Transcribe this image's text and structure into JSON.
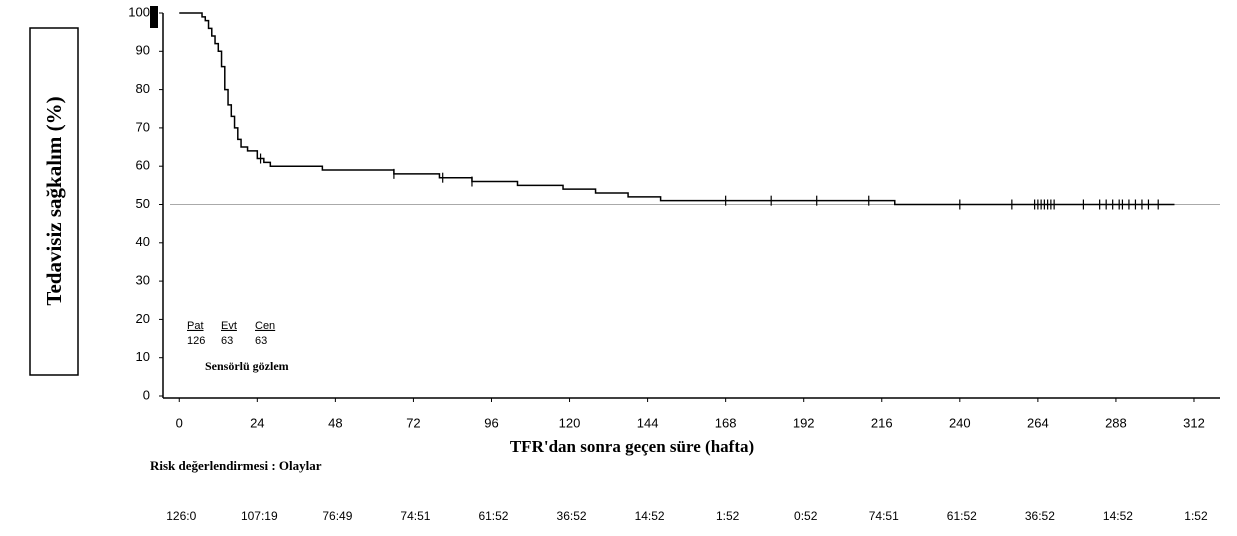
{
  "chart_data": {
    "type": "line",
    "y_label": "Tedavisiz sağkalım (%)",
    "x_label": "TFR'dan sonra geçen süre (hafta)",
    "xlim": [
      -5,
      320
    ],
    "ylim": [
      0,
      100
    ],
    "xticks": [
      0,
      24,
      48,
      72,
      96,
      120,
      144,
      168,
      192,
      216,
      240,
      264,
      288,
      312
    ],
    "yticks": [
      0,
      10,
      20,
      30,
      40,
      50,
      60,
      70,
      80,
      90,
      100
    ],
    "reference_line": 50,
    "series": [
      {
        "color": "#000000",
        "x": [
          0,
          7,
          7,
          8,
          8,
          9,
          9,
          10,
          10,
          11,
          11,
          12,
          12,
          13,
          13,
          14,
          14,
          15,
          15,
          16,
          16,
          17,
          17,
          18,
          18,
          19,
          19,
          21,
          21,
          24,
          24,
          26,
          26,
          28,
          28,
          44,
          44,
          66,
          66,
          80,
          80,
          90,
          90,
          104,
          104,
          118,
          118,
          128,
          128,
          138,
          138,
          148,
          148,
          220,
          220,
          306
        ],
        "values": [
          100,
          100,
          99,
          99,
          98,
          98,
          96,
          96,
          94,
          94,
          92,
          92,
          90,
          90,
          86,
          86,
          80,
          80,
          76,
          76,
          73,
          73,
          70,
          70,
          67,
          67,
          65,
          65,
          64,
          64,
          62,
          62,
          61,
          61,
          60,
          60,
          59,
          59,
          58,
          58,
          57,
          57,
          56,
          56,
          55,
          55,
          54,
          54,
          53,
          53,
          52,
          52,
          51,
          51,
          50,
          50
        ]
      }
    ],
    "censored": {
      "x": [
        25,
        66,
        81,
        90,
        168,
        182,
        196,
        212,
        240,
        256,
        263,
        264,
        265,
        266,
        267,
        268,
        269,
        278,
        283,
        285,
        287,
        289,
        290,
        292,
        294,
        296,
        298,
        301
      ],
      "values": [
        62,
        58,
        57,
        56,
        51,
        51,
        51,
        51,
        50,
        50,
        50,
        50,
        50,
        50,
        50,
        50,
        50,
        50,
        50,
        50,
        50,
        50,
        50,
        50,
        50,
        50,
        50,
        50
      ]
    },
    "summary": {
      "headers": [
        "Pat",
        "Evt",
        "Cen"
      ],
      "values": [
        "126",
        "63",
        "63"
      ],
      "note": "Sensörlü gözlem"
    },
    "risk_table": {
      "title": "Risk değerlendirmesi : Olaylar",
      "values": [
        "126:0",
        "107:19",
        "76:49",
        "74:51",
        "61:52",
        "36:52",
        "14:52",
        "1:52",
        "0:52",
        "74:51",
        "61:52",
        "36:52",
        "14:52",
        "1:52"
      ]
    }
  }
}
